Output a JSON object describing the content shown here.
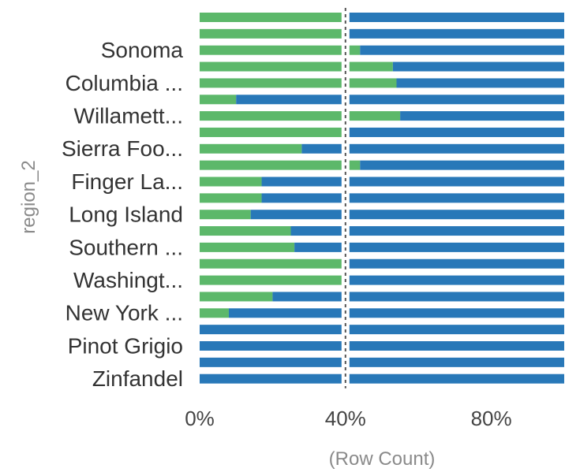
{
  "chart_data": {
    "type": "bar",
    "orientation": "horizontal",
    "stacked": true,
    "normalized": true,
    "ylabel": "region_2",
    "xlabel": "(Row Count)",
    "xlim": [
      0,
      1.0
    ],
    "x_ticks": [
      {
        "value": 0.0,
        "label": "0%"
      },
      {
        "value": 0.4,
        "label": "40%"
      },
      {
        "value": 0.8,
        "label": "80%"
      }
    ],
    "reference_line": {
      "value": 0.4,
      "style": "dashed"
    },
    "row_labels": [
      "",
      "",
      "Sonoma",
      "",
      "Columbia ...",
      "",
      "Willamett...",
      "",
      "Sierra Foo...",
      "",
      "Finger La...",
      "",
      "Long Island",
      "",
      "Southern ...",
      "",
      "Washingt...",
      "",
      "New York ...",
      "",
      "Pinot Grigio",
      "",
      "Zinfandel"
    ],
    "series": [
      {
        "color": "#5cb86a",
        "values": [
          0.39,
          0.39,
          0.44,
          0.53,
          0.54,
          0.1,
          0.55,
          0.39,
          0.28,
          0.44,
          0.17,
          0.17,
          0.14,
          0.25,
          0.26,
          0.39,
          0.41,
          0.2,
          0.08,
          0.0,
          0.0,
          0.0,
          0.0
        ]
      },
      {
        "color": "#2878b8",
        "values": [
          0.61,
          0.61,
          0.56,
          0.47,
          0.46,
          0.9,
          0.45,
          0.61,
          0.72,
          0.56,
          0.83,
          0.83,
          0.86,
          0.75,
          0.74,
          0.61,
          0.59,
          0.8,
          0.92,
          1.0,
          1.0,
          1.0,
          1.0
        ]
      }
    ],
    "grid": false,
    "legend": false
  }
}
